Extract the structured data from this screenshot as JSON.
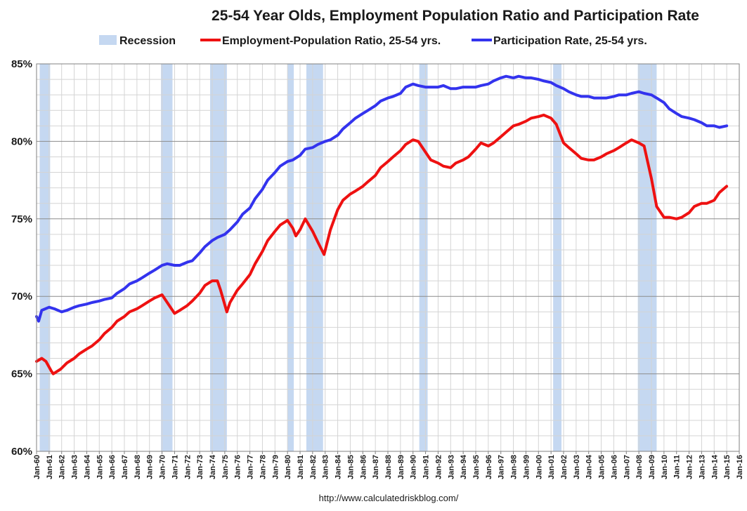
{
  "chart_data": {
    "type": "line",
    "title": "25-54 Year Olds, Employment Population Ratio and Participation Rate",
    "source": "http://www.calculatedriskblog.com/",
    "ylim": [
      60,
      85
    ],
    "y_ticks": [
      60,
      65,
      70,
      75,
      80,
      85
    ],
    "y_tick_labels": [
      "60%",
      "65%",
      "70%",
      "75%",
      "80%",
      "85%"
    ],
    "xlim": [
      "1960-01",
      "2016-01"
    ],
    "x_tick_labels": [
      "Jan-60",
      "Jan-61",
      "Jan-62",
      "Jan-63",
      "Jan-64",
      "Jan-65",
      "Jan-66",
      "Jan-67",
      "Jan-68",
      "Jan-69",
      "Jan-70",
      "Jan-71",
      "Jan-72",
      "Jan-73",
      "Jan-74",
      "Jan-75",
      "Jan-76",
      "Jan-77",
      "Jan-78",
      "Jan-79",
      "Jan-80",
      "Jan-81",
      "Jan-82",
      "Jan-83",
      "Jan-84",
      "Jan-85",
      "Jan-86",
      "Jan-87",
      "Jan-88",
      "Jan-89",
      "Jan-90",
      "Jan-91",
      "Jan-92",
      "Jan-93",
      "Jan-94",
      "Jan-95",
      "Jan-96",
      "Jan-97",
      "Jan-98",
      "Jan-99",
      "Jan-00",
      "Jan-01",
      "Jan-02",
      "Jan-03",
      "Jan-04",
      "Jan-05",
      "Jan-06",
      "Jan-07",
      "Jan-08",
      "Jan-09",
      "Jan-10",
      "Jan-11",
      "Jan-12",
      "Jan-13",
      "Jan-14",
      "Jan-15",
      "Jan-16"
    ],
    "grid": true,
    "legend_position": "top",
    "recession_label": "Recession",
    "recession_color": "#c5d8f1",
    "recessions": [
      [
        "1960-04",
        "1961-02"
      ],
      [
        "1969-12",
        "1970-11"
      ],
      [
        "1973-11",
        "1975-03"
      ],
      [
        "1980-01",
        "1980-07"
      ],
      [
        "1981-07",
        "1982-11"
      ],
      [
        "1990-07",
        "1991-03"
      ],
      [
        "2001-03",
        "2001-11"
      ],
      [
        "2007-12",
        "2009-06"
      ]
    ],
    "series": [
      {
        "name": "Employment-Population Ratio, 25-54 yrs.",
        "color": "#ee1111",
        "x": [
          "1960-01",
          "1960-06",
          "1960-10",
          "1961-03",
          "1961-05",
          "1961-12",
          "1962-06",
          "1963-01",
          "1963-06",
          "1964-01",
          "1964-06",
          "1965-01",
          "1965-06",
          "1966-01",
          "1966-06",
          "1967-01",
          "1967-06",
          "1968-01",
          "1968-06",
          "1969-01",
          "1969-06",
          "1970-01",
          "1970-06",
          "1971-01",
          "1971-06",
          "1972-01",
          "1972-06",
          "1973-01",
          "1973-06",
          "1974-01",
          "1974-06",
          "1974-09",
          "1975-03",
          "1975-06",
          "1976-01",
          "1976-06",
          "1977-01",
          "1977-06",
          "1978-01",
          "1978-06",
          "1979-01",
          "1979-06",
          "1980-01",
          "1980-06",
          "1980-09",
          "1981-01",
          "1981-06",
          "1982-01",
          "1982-06",
          "1982-12",
          "1983-06",
          "1984-01",
          "1984-06",
          "1985-01",
          "1985-06",
          "1986-01",
          "1986-06",
          "1987-01",
          "1987-06",
          "1988-01",
          "1988-06",
          "1989-01",
          "1989-06",
          "1990-01",
          "1990-06",
          "1991-01",
          "1991-06",
          "1992-01",
          "1992-06",
          "1993-01",
          "1993-06",
          "1994-01",
          "1994-06",
          "1995-01",
          "1995-06",
          "1996-01",
          "1996-06",
          "1997-01",
          "1997-06",
          "1998-01",
          "1998-06",
          "1999-01",
          "1999-06",
          "2000-01",
          "2000-06",
          "2001-01",
          "2001-06",
          "2002-01",
          "2002-06",
          "2003-01",
          "2003-06",
          "2004-01",
          "2004-06",
          "2005-01",
          "2005-06",
          "2006-01",
          "2006-06",
          "2007-01",
          "2007-06",
          "2008-01",
          "2008-06",
          "2009-01",
          "2009-06",
          "2010-01",
          "2010-06",
          "2011-01",
          "2011-06",
          "2012-01",
          "2012-06",
          "2013-01",
          "2013-06",
          "2014-01",
          "2014-06",
          "2015-01"
        ],
        "values": [
          65.8,
          66.0,
          65.8,
          65.2,
          65.0,
          65.3,
          65.7,
          66.0,
          66.3,
          66.6,
          66.8,
          67.2,
          67.6,
          68.0,
          68.4,
          68.7,
          69.0,
          69.2,
          69.4,
          69.7,
          69.9,
          70.1,
          69.6,
          68.9,
          69.1,
          69.4,
          69.7,
          70.2,
          70.7,
          71.0,
          71.0,
          70.4,
          69.0,
          69.6,
          70.4,
          70.8,
          71.4,
          72.1,
          72.9,
          73.6,
          74.2,
          74.6,
          74.9,
          74.4,
          73.9,
          74.3,
          75.0,
          74.2,
          73.5,
          72.7,
          74.3,
          75.6,
          76.2,
          76.6,
          76.8,
          77.1,
          77.4,
          77.8,
          78.3,
          78.7,
          79.0,
          79.4,
          79.8,
          80.1,
          80.0,
          79.3,
          78.8,
          78.6,
          78.4,
          78.3,
          78.6,
          78.8,
          79.0,
          79.5,
          79.9,
          79.7,
          79.9,
          80.3,
          80.6,
          81.0,
          81.1,
          81.3,
          81.5,
          81.6,
          81.7,
          81.5,
          81.1,
          79.9,
          79.6,
          79.2,
          78.9,
          78.8,
          78.8,
          79.0,
          79.2,
          79.4,
          79.6,
          79.9,
          80.1,
          79.9,
          79.7,
          77.6,
          75.8,
          75.1,
          75.1,
          75.0,
          75.1,
          75.4,
          75.8,
          76.0,
          76.0,
          76.2,
          76.7,
          77.1
        ]
      },
      {
        "name": "Participation Rate, 25-54 yrs.",
        "color": "#3333ee",
        "x": [
          "1960-01",
          "1960-03",
          "1960-06",
          "1961-01",
          "1961-06",
          "1962-01",
          "1962-06",
          "1963-01",
          "1963-06",
          "1964-01",
          "1964-06",
          "1965-01",
          "1965-06",
          "1966-01",
          "1966-06",
          "1967-01",
          "1967-06",
          "1968-01",
          "1968-06",
          "1969-01",
          "1969-06",
          "1970-01",
          "1970-06",
          "1971-01",
          "1971-06",
          "1972-01",
          "1972-06",
          "1973-01",
          "1973-06",
          "1974-01",
          "1974-06",
          "1975-01",
          "1975-06",
          "1976-01",
          "1976-06",
          "1977-01",
          "1977-06",
          "1978-01",
          "1978-06",
          "1979-01",
          "1979-06",
          "1980-01",
          "1980-06",
          "1981-01",
          "1981-06",
          "1982-01",
          "1982-06",
          "1983-01",
          "1983-06",
          "1984-01",
          "1984-06",
          "1985-01",
          "1985-06",
          "1986-01",
          "1986-06",
          "1987-01",
          "1987-06",
          "1988-01",
          "1988-06",
          "1989-01",
          "1989-06",
          "1990-01",
          "1990-06",
          "1991-01",
          "1991-06",
          "1992-01",
          "1992-06",
          "1993-01",
          "1993-06",
          "1994-01",
          "1994-06",
          "1995-01",
          "1995-06",
          "1996-01",
          "1996-06",
          "1997-01",
          "1997-06",
          "1998-01",
          "1998-06",
          "1999-01",
          "1999-06",
          "2000-01",
          "2000-06",
          "2001-01",
          "2001-06",
          "2002-01",
          "2002-06",
          "2003-01",
          "2003-06",
          "2004-01",
          "2004-06",
          "2005-01",
          "2005-06",
          "2006-01",
          "2006-06",
          "2007-01",
          "2007-06",
          "2008-01",
          "2008-06",
          "2009-01",
          "2009-06",
          "2010-01",
          "2010-06",
          "2011-01",
          "2011-06",
          "2012-01",
          "2012-06",
          "2013-01",
          "2013-06",
          "2014-01",
          "2014-06",
          "2015-01"
        ],
        "values": [
          68.7,
          68.4,
          69.1,
          69.3,
          69.2,
          69.0,
          69.1,
          69.3,
          69.4,
          69.5,
          69.6,
          69.7,
          69.8,
          69.9,
          70.2,
          70.5,
          70.8,
          71.0,
          71.2,
          71.5,
          71.7,
          72.0,
          72.1,
          72.0,
          72.0,
          72.2,
          72.3,
          72.8,
          73.2,
          73.6,
          73.8,
          74.0,
          74.3,
          74.8,
          75.3,
          75.7,
          76.3,
          76.9,
          77.5,
          78.0,
          78.4,
          78.7,
          78.8,
          79.1,
          79.5,
          79.6,
          79.8,
          80.0,
          80.1,
          80.4,
          80.8,
          81.2,
          81.5,
          81.8,
          82.0,
          82.3,
          82.6,
          82.8,
          82.9,
          83.1,
          83.5,
          83.7,
          83.6,
          83.5,
          83.5,
          83.5,
          83.6,
          83.4,
          83.4,
          83.5,
          83.5,
          83.5,
          83.6,
          83.7,
          83.9,
          84.1,
          84.2,
          84.1,
          84.2,
          84.1,
          84.1,
          84.0,
          83.9,
          83.8,
          83.6,
          83.4,
          83.2,
          83.0,
          82.9,
          82.9,
          82.8,
          82.8,
          82.8,
          82.9,
          83.0,
          83.0,
          83.1,
          83.2,
          83.1,
          83.0,
          82.8,
          82.5,
          82.1,
          81.8,
          81.6,
          81.5,
          81.4,
          81.2,
          81.0,
          81.0,
          80.9,
          81.0
        ]
      }
    ]
  }
}
